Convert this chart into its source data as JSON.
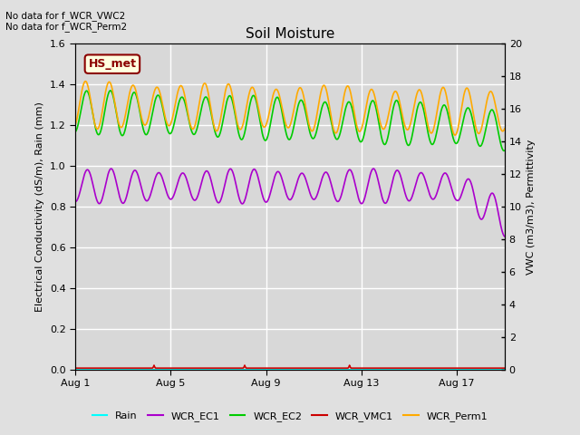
{
  "title": "Soil Moisture",
  "ylabel_left": "Electrical Conductivity (dS/m), Rain (mm)",
  "ylabel_right": "VWC (m3/m3), Permittivity",
  "no_data_text_1": "No data for f_WCR_VWC2",
  "no_data_text_2": "No data for f_WCR_Perm2",
  "station_label": "HS_met",
  "ylim_left": [
    0.0,
    1.6
  ],
  "ylim_right": [
    0,
    20
  ],
  "yticks_left": [
    0.0,
    0.2,
    0.4,
    0.6,
    0.8,
    1.0,
    1.2,
    1.4,
    1.6
  ],
  "yticks_right": [
    0,
    2,
    4,
    6,
    8,
    10,
    12,
    14,
    16,
    18,
    20
  ],
  "xtick_positions": [
    0,
    4,
    8,
    12,
    16
  ],
  "xtick_labels": [
    "Aug 1",
    "Aug 5",
    "Aug 9",
    "Aug 13",
    "Aug 17"
  ],
  "xlim": [
    0,
    18
  ],
  "legend_entries": [
    "Rain",
    "WCR_EC1",
    "WCR_EC2",
    "WCR_VMC1",
    "WCR_Perm1"
  ],
  "legend_colors": [
    "#00ffff",
    "#aa00cc",
    "#00cc00",
    "#cc0000",
    "#ffaa00"
  ],
  "background_color": "#e0e0e0",
  "plot_bg_color": "#d8d8d8",
  "grid_color": "#ffffff",
  "figsize": [
    6.4,
    4.8
  ],
  "dpi": 100
}
